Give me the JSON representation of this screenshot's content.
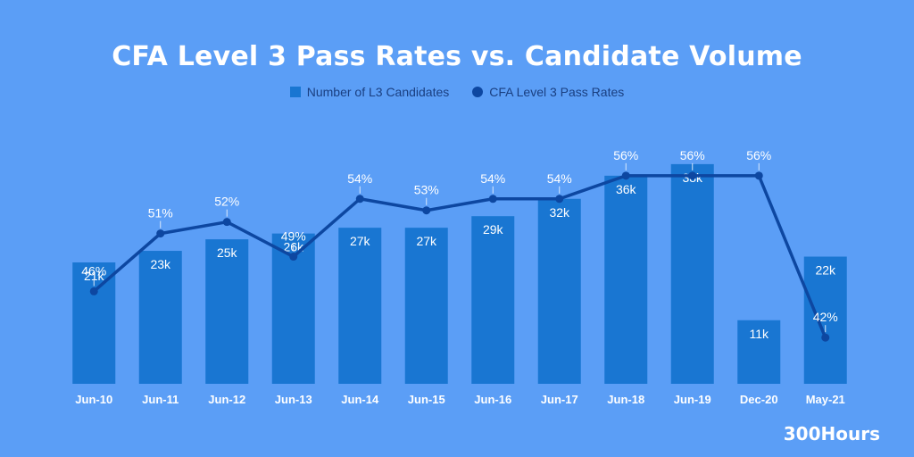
{
  "colors": {
    "background": "#5b9ef6",
    "bar": "#1976d2",
    "line": "#0d47a1",
    "label": "#ffffff",
    "axis_text": "#ffffff"
  },
  "brand": "300Hours",
  "chart_data": {
    "type": "bar",
    "title": "CFA Level 3 Pass Rates vs. Candidate Volume",
    "categories": [
      "Jun-10",
      "Jun-11",
      "Jun-12",
      "Jun-13",
      "Jun-14",
      "Jun-15",
      "Jun-16",
      "Jun-17",
      "Jun-18",
      "Jun-19",
      "Dec-20",
      "May-21"
    ],
    "series": [
      {
        "name": "Number of L3 Candidates",
        "kind": "bar",
        "values": [
          21,
          23,
          25,
          26,
          27,
          27,
          29,
          32,
          36,
          38,
          11,
          22
        ],
        "labels": [
          "21k",
          "23k",
          "25k",
          "26k",
          "27k",
          "27k",
          "29k",
          "32k",
          "36k",
          "38k",
          "11k",
          "22k"
        ]
      },
      {
        "name": "CFA Level 3 Pass Rates",
        "kind": "line",
        "values": [
          46,
          51,
          52,
          49,
          54,
          53,
          54,
          54,
          56,
          56,
          56,
          42
        ],
        "labels": [
          "46%",
          "51%",
          "52%",
          "49%",
          "54%",
          "53%",
          "54%",
          "54%",
          "56%",
          "56%",
          "56%",
          "42%"
        ]
      }
    ],
    "bar_axis_range": [
      0,
      42
    ],
    "line_axis_range": [
      38,
      59
    ],
    "legend_position": "top-center",
    "grid": false
  }
}
